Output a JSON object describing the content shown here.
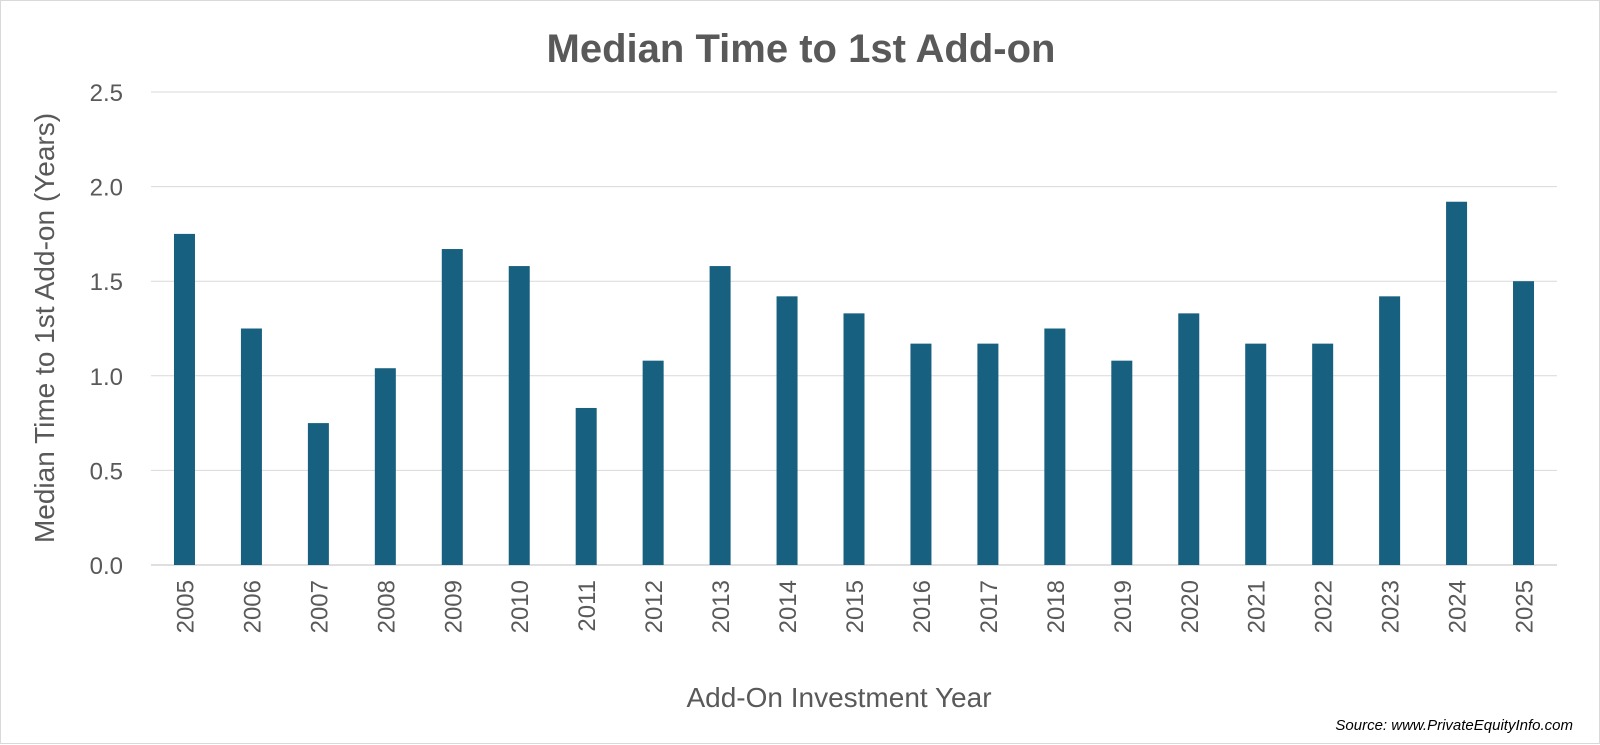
{
  "chart_data": {
    "type": "bar",
    "title": "Median Time to 1st Add-on",
    "xlabel": "Add-On Investment Year",
    "ylabel": "Median Time to 1st Add-on (Years)",
    "categories": [
      "2005",
      "2006",
      "2007",
      "2008",
      "2009",
      "2010",
      "2011",
      "2012",
      "2013",
      "2014",
      "2015",
      "2016",
      "2017",
      "2018",
      "2019",
      "2020",
      "2021",
      "2022",
      "2023",
      "2024",
      "2025"
    ],
    "values": [
      1.75,
      1.25,
      0.75,
      1.04,
      1.67,
      1.58,
      0.83,
      1.08,
      1.58,
      1.42,
      1.33,
      1.17,
      1.17,
      1.25,
      1.08,
      1.33,
      1.17,
      1.17,
      1.42,
      1.92,
      1.5
    ],
    "ylim": [
      0,
      2.5
    ],
    "yticks": [
      "0.0",
      "0.5",
      "1.0",
      "1.5",
      "2.0",
      "2.5"
    ],
    "grid": true,
    "bar_color": "#17607f",
    "source": "Source: www.PrivateEquityInfo.com"
  }
}
